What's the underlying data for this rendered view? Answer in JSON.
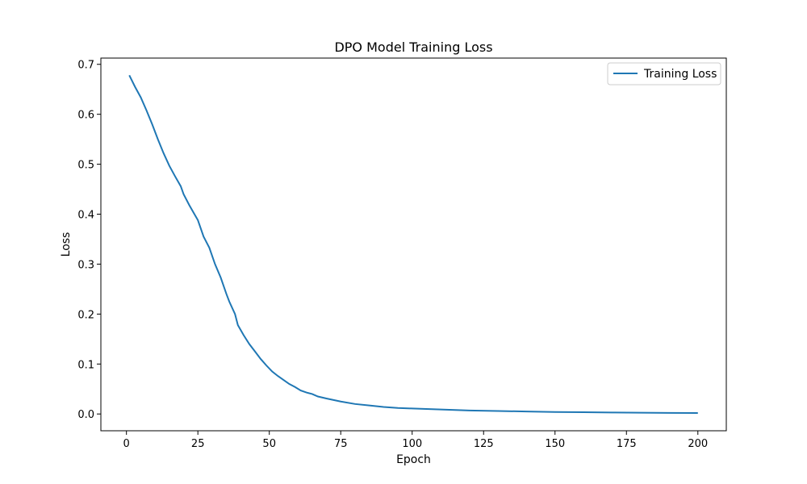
{
  "chart_data": {
    "type": "line",
    "title": "DPO Model Training Loss",
    "xlabel": "Epoch",
    "ylabel": "Loss",
    "xlim": [
      -8.95,
      209.95
    ],
    "ylim": [
      -0.0336,
      0.7125
    ],
    "xticks": [
      0,
      25,
      50,
      75,
      100,
      125,
      150,
      175,
      200
    ],
    "yticks": [
      0.0,
      0.1,
      0.2,
      0.3,
      0.4,
      0.5,
      0.6,
      0.7
    ],
    "ytick_labels": [
      "0.0",
      "0.1",
      "0.2",
      "0.3",
      "0.4",
      "0.5",
      "0.6",
      "0.7"
    ],
    "grid": false,
    "legend_position": "top-right",
    "colors": {
      "series": "#1f77b4"
    },
    "series": [
      {
        "name": "Training Loss",
        "x": [
          1,
          3,
          5,
          7,
          9,
          11,
          13,
          15,
          17,
          19,
          20,
          22,
          24,
          25,
          27,
          29,
          31,
          33,
          35,
          36,
          38,
          39,
          41,
          43,
          45,
          47,
          49,
          51,
          53,
          55,
          57,
          59,
          61,
          63,
          65,
          67,
          70,
          75,
          80,
          85,
          90,
          95,
          100,
          110,
          120,
          130,
          140,
          150,
          160,
          170,
          180,
          190,
          200
        ],
        "y": [
          0.678,
          0.655,
          0.634,
          0.608,
          0.58,
          0.55,
          0.522,
          0.497,
          0.476,
          0.456,
          0.44,
          0.418,
          0.398,
          0.388,
          0.355,
          0.333,
          0.3,
          0.273,
          0.24,
          0.225,
          0.2,
          0.178,
          0.158,
          0.14,
          0.125,
          0.11,
          0.097,
          0.085,
          0.076,
          0.068,
          0.06,
          0.054,
          0.047,
          0.043,
          0.04,
          0.035,
          0.031,
          0.025,
          0.02,
          0.017,
          0.014,
          0.012,
          0.011,
          0.009,
          0.007,
          0.006,
          0.005,
          0.004,
          0.0035,
          0.003,
          0.0025,
          0.0022,
          0.002
        ]
      }
    ]
  }
}
